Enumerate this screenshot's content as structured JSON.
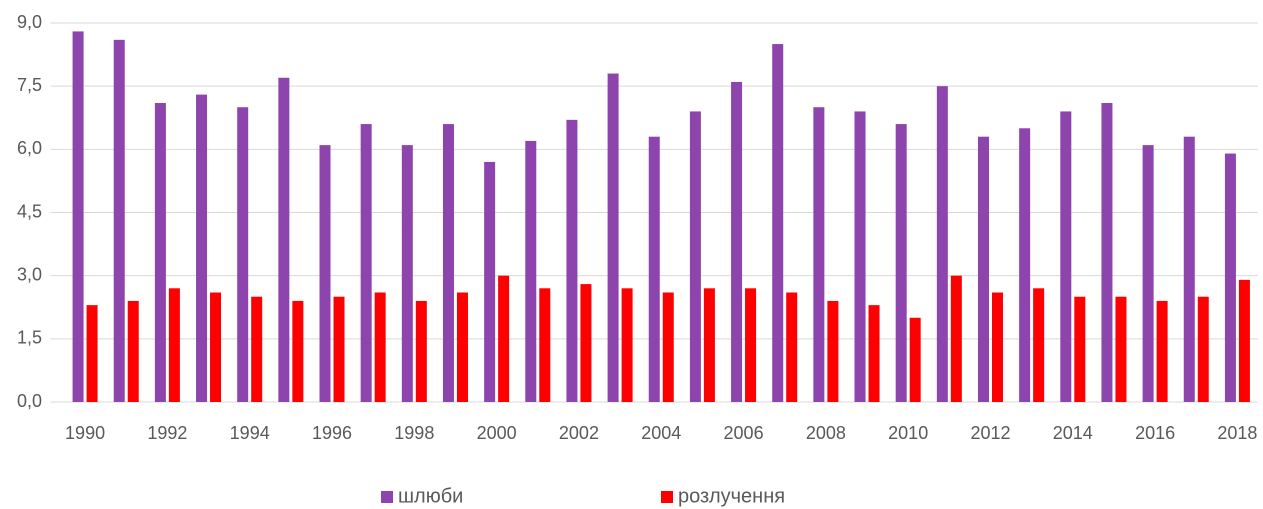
{
  "chart_data": {
    "type": "bar",
    "categories": [
      "1990",
      null,
      "1992",
      null,
      "1994",
      null,
      "1996",
      null,
      "1998",
      null,
      "2000",
      null,
      "2002",
      null,
      "2004",
      null,
      "2006",
      null,
      "2008",
      null,
      "2010",
      null,
      "2012",
      null,
      "2014",
      null,
      "2016",
      null,
      "2018"
    ],
    "series": [
      {
        "name": "шлюби",
        "color": "#8e44ad",
        "values": [
          8.8,
          8.6,
          7.1,
          7.3,
          7.0,
          7.7,
          6.1,
          6.6,
          6.1,
          6.6,
          5.7,
          6.2,
          6.7,
          7.8,
          6.3,
          6.9,
          7.6,
          8.5,
          7.0,
          6.9,
          6.6,
          7.5,
          6.3,
          6.5,
          6.9,
          7.1,
          6.1,
          6.3,
          5.9
        ]
      },
      {
        "name": "розлучення",
        "color": "#ff0000",
        "values": [
          2.3,
          2.4,
          2.7,
          2.6,
          2.5,
          2.4,
          2.5,
          2.6,
          2.4,
          2.6,
          3.0,
          2.7,
          2.8,
          2.7,
          2.6,
          2.7,
          2.7,
          2.6,
          2.4,
          2.3,
          2.0,
          3.0,
          2.6,
          2.7,
          2.5,
          2.5,
          2.4,
          2.5,
          2.9
        ]
      }
    ],
    "ylim": [
      0,
      9
    ],
    "yticks": [
      {
        "value": 0,
        "label": "0,0"
      },
      {
        "value": 1.5,
        "label": "1,5"
      },
      {
        "value": 3,
        "label": "3,0"
      },
      {
        "value": 4.5,
        "label": "4,5"
      },
      {
        "value": 6,
        "label": "6,0"
      },
      {
        "value": 7.5,
        "label": "7,5"
      },
      {
        "value": 9,
        "label": "9,0"
      }
    ],
    "grid": true,
    "legend": "bottom"
  }
}
